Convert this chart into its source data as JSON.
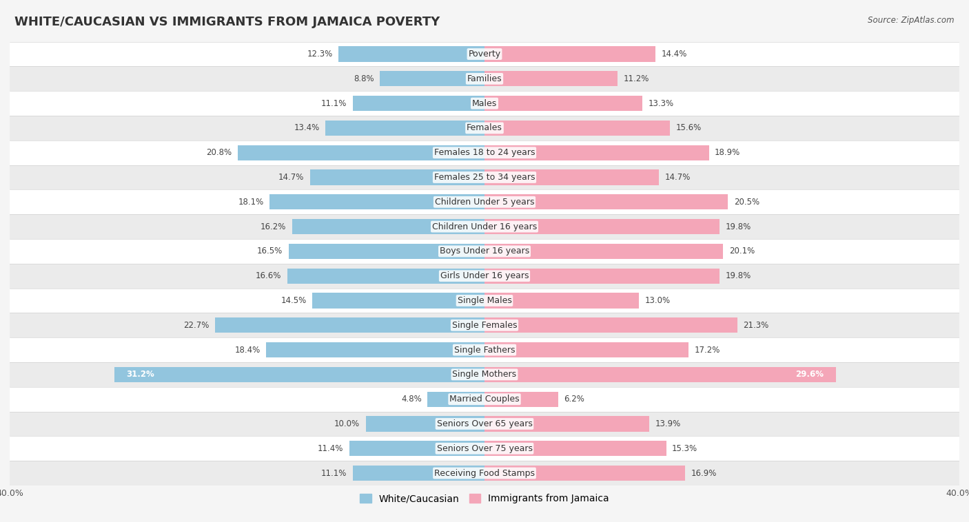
{
  "title": "WHITE/CAUCASIAN VS IMMIGRANTS FROM JAMAICA POVERTY",
  "source": "Source: ZipAtlas.com",
  "categories": [
    "Poverty",
    "Families",
    "Males",
    "Females",
    "Females 18 to 24 years",
    "Females 25 to 34 years",
    "Children Under 5 years",
    "Children Under 16 years",
    "Boys Under 16 years",
    "Girls Under 16 years",
    "Single Males",
    "Single Females",
    "Single Fathers",
    "Single Mothers",
    "Married Couples",
    "Seniors Over 65 years",
    "Seniors Over 75 years",
    "Receiving Food Stamps"
  ],
  "white_values": [
    12.3,
    8.8,
    11.1,
    13.4,
    20.8,
    14.7,
    18.1,
    16.2,
    16.5,
    16.6,
    14.5,
    22.7,
    18.4,
    31.2,
    4.8,
    10.0,
    11.4,
    11.1
  ],
  "immigrant_values": [
    14.4,
    11.2,
    13.3,
    15.6,
    18.9,
    14.7,
    20.5,
    19.8,
    20.1,
    19.8,
    13.0,
    21.3,
    17.2,
    29.6,
    6.2,
    13.9,
    15.3,
    16.9
  ],
  "white_color": "#92c5de",
  "immigrant_color": "#f4a6b8",
  "white_label": "White/Caucasian",
  "immigrant_label": "Immigrants from Jamaica",
  "row_colors": [
    "#ffffff",
    "#ebebeb"
  ],
  "xlim": 40.0,
  "bar_height": 0.62,
  "title_fontsize": 13,
  "label_fontsize": 9,
  "tick_fontsize": 9,
  "value_fontsize": 8.5,
  "inside_label_threshold": 28.0
}
